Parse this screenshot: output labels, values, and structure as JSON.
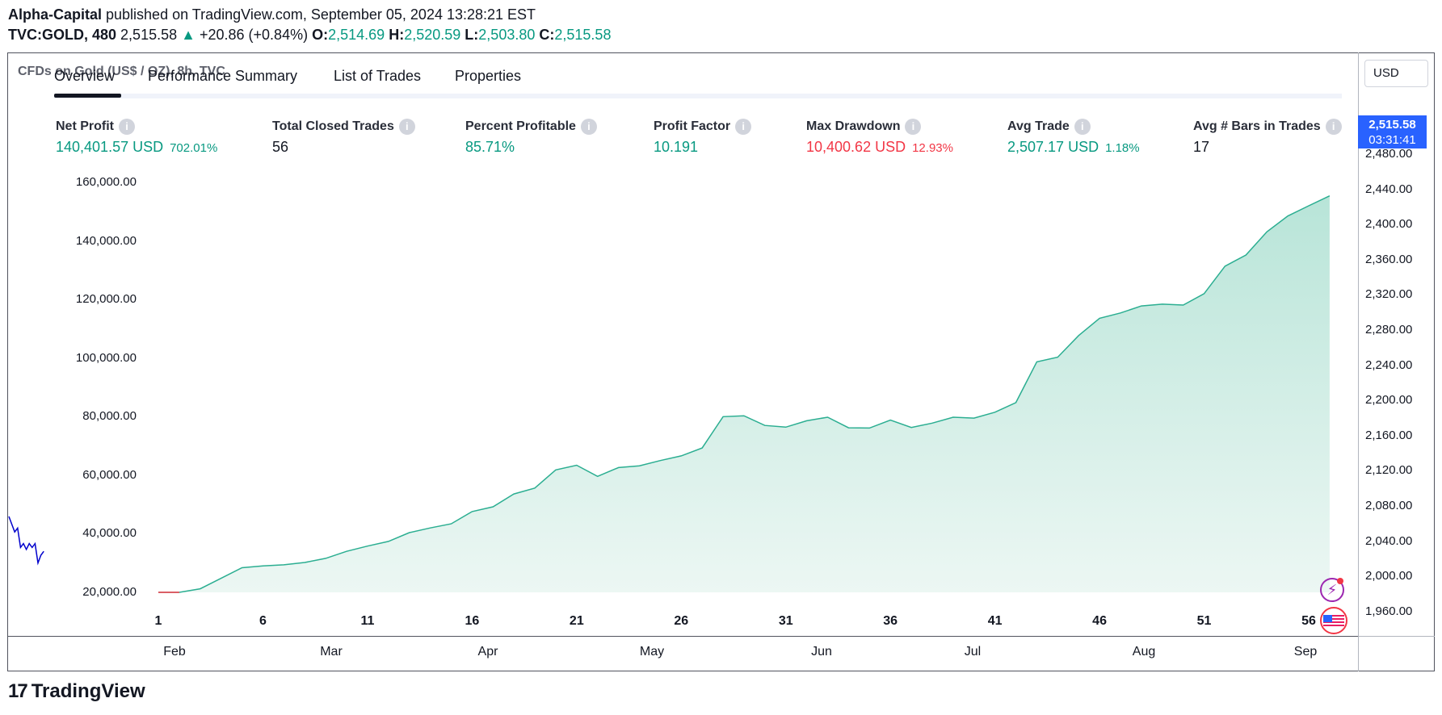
{
  "header": {
    "author": "Alpha-Capital",
    "published_text": " published on TradingView.com, September 05, 2024 13:28:21 EST",
    "symbol": "TVC:GOLD, 480",
    "last_price": "2,515.58",
    "change_arrow": "▲",
    "change": "+20.86 (+0.84%)",
    "o_label": "O:",
    "o_value": "2,514.69",
    "h_label": "H:",
    "h_value": "2,520.59",
    "l_label": "L:",
    "l_value": "2,503.80",
    "c_label": "C:",
    "c_value": "2,515.58"
  },
  "chart_title": "CFDs on Gold (US$ / OZ), 8h, TVC",
  "currency_button": "USD",
  "tabs": [
    {
      "label": "Overview",
      "active": true
    },
    {
      "label": "Performance Summary",
      "active": false
    },
    {
      "label": "List of Trades",
      "active": false
    },
    {
      "label": "Properties",
      "active": false
    }
  ],
  "stats": [
    {
      "label": "Net Profit",
      "value": "140,401.57 USD",
      "pct": "702.01%",
      "color": "green"
    },
    {
      "label": "Total Closed Trades",
      "value": "56",
      "pct": "",
      "color": "dark"
    },
    {
      "label": "Percent Profitable",
      "value": "85.71%",
      "pct": "",
      "color": "green"
    },
    {
      "label": "Profit Factor",
      "value": "10.191",
      "pct": "",
      "color": "green"
    },
    {
      "label": "Max Drawdown",
      "value": "10,400.62 USD",
      "pct": "12.93%",
      "color": "red"
    },
    {
      "label": "Avg Trade",
      "value": "2,507.17 USD",
      "pct": "1.18%",
      "color": "green"
    },
    {
      "label": "Avg # Bars in Trades",
      "value": "17",
      "pct": "",
      "color": "dark"
    }
  ],
  "price_tag": {
    "price": "2,515.58",
    "countdown": "03:31:41",
    "color": "#2962ff"
  },
  "right_axis_ticks": [
    "2,480.00",
    "2,440.00",
    "2,400.00",
    "2,360.00",
    "2,320.00",
    "2,280.00",
    "2,240.00",
    "2,200.00",
    "2,160.00",
    "2,120.00",
    "2,080.00",
    "2,040.00",
    "2,000.00",
    "1,960.00"
  ],
  "month_labels": [
    "Feb",
    "Mar",
    "Apr",
    "May",
    "Jun",
    "Jul",
    "Aug",
    "Sep"
  ],
  "footer": {
    "brand": "TradingView",
    "logo_mark": "17"
  },
  "chart_data": {
    "type": "area",
    "xlabel": "",
    "ylabel": "",
    "title": "",
    "x_tick_labels": [
      "1",
      "6",
      "11",
      "16",
      "21",
      "26",
      "31",
      "36",
      "41",
      "46",
      "51",
      "56"
    ],
    "y_tick_labels": [
      "160,000.00",
      "140,000.00",
      "120,000.00",
      "100,000.00",
      "80,000.00",
      "60,000.00",
      "40,000.00",
      "20,000.00"
    ],
    "ylim": [
      20000,
      160000
    ],
    "xlim": [
      1,
      56
    ],
    "series": [
      {
        "color": "#2bae91",
        "x": [
          1,
          2,
          3,
          4,
          5,
          6,
          7,
          8,
          9,
          10,
          11,
          12,
          13,
          14,
          15,
          16,
          17,
          18,
          19,
          20,
          21,
          22,
          23,
          24,
          25,
          26,
          27,
          28,
          29,
          30,
          31,
          32,
          33,
          34,
          35,
          36,
          37,
          38,
          39,
          40,
          41,
          42,
          43,
          44,
          45,
          46,
          47,
          48,
          49,
          50,
          51,
          52,
          53,
          54,
          55,
          56,
          57
        ],
        "values": [
          20000,
          20000,
          21200,
          24800,
          28400,
          29000,
          29400,
          30200,
          31600,
          34000,
          35800,
          37400,
          40400,
          42000,
          43400,
          47600,
          49200,
          53600,
          55600,
          61800,
          63400,
          59600,
          62600,
          63200,
          65000,
          66600,
          69300,
          80000,
          80300,
          77000,
          76400,
          78600,
          79800,
          76200,
          76100,
          78800,
          76300,
          77800,
          79800,
          79500,
          81500,
          84800,
          98700,
          100300,
          107700,
          113600,
          115400,
          117800,
          118400,
          118100,
          122000,
          131400,
          135200,
          143100,
          148500,
          152000,
          155400
        ]
      }
    ],
    "grid": false,
    "legend": "none"
  },
  "mini_price_line": {
    "color": "#0000cc",
    "values": [
      2492,
      2488,
      2484,
      2486,
      2476,
      2478,
      2475,
      2478,
      2476,
      2478,
      2468,
      2472,
      2474
    ]
  }
}
